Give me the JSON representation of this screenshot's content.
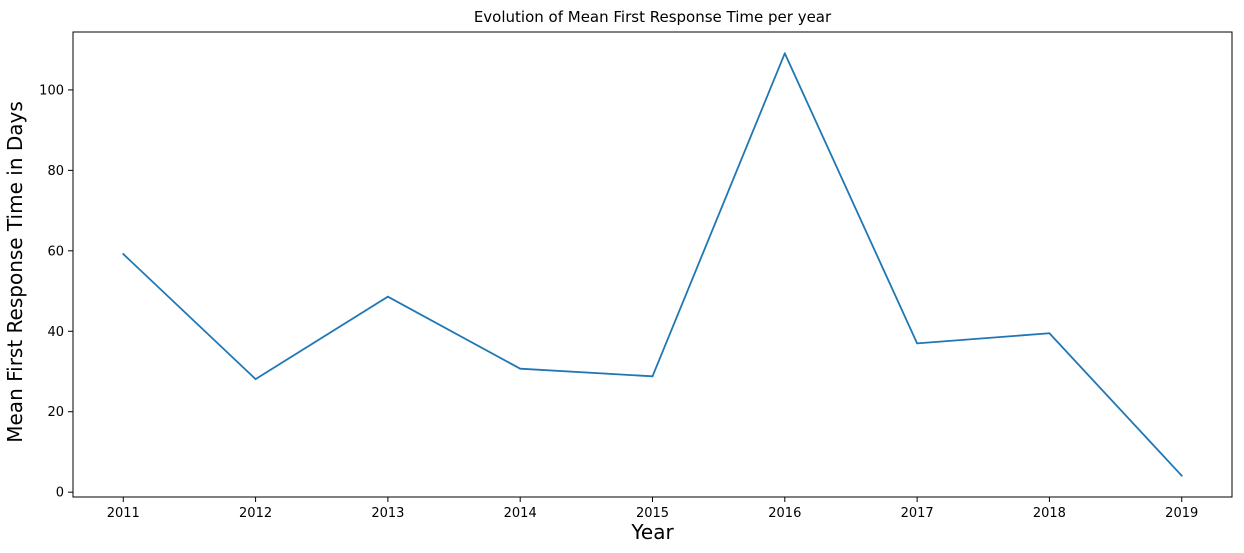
{
  "chart_data": {
    "type": "line",
    "title": "Evolution of Mean First Response Time per year",
    "xlabel": "Year",
    "ylabel": "Mean First Response Time in Days",
    "x": [
      2011,
      2012,
      2013,
      2014,
      2015,
      2016,
      2017,
      2018,
      2019
    ],
    "series": [
      {
        "values": [
          59.2,
          28.1,
          48.6,
          30.7,
          28.8,
          109.1,
          37.0,
          39.5,
          4.1
        ],
        "color": "#1f77b4"
      }
    ],
    "xticks": [
      "2011",
      "2012",
      "2013",
      "2014",
      "2015",
      "2016",
      "2017",
      "2018",
      "2019"
    ],
    "yticks": [
      0,
      20,
      40,
      60,
      80,
      100
    ],
    "xlim": [
      2010.62,
      2019.38
    ],
    "ylim": [
      -1.2,
      114.4
    ],
    "grid": false,
    "legend": "none"
  }
}
